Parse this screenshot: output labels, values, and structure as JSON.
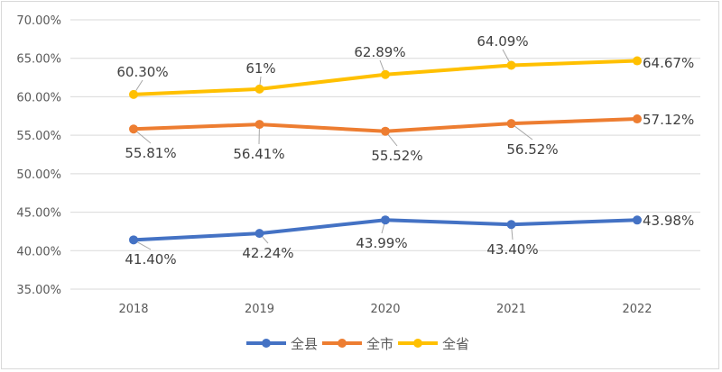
{
  "chart_data": {
    "type": "line",
    "title": "",
    "xlabel": "",
    "ylabel": "",
    "categories": [
      "2018",
      "2019",
      "2020",
      "2021",
      "2022"
    ],
    "ylim": [
      35,
      70
    ],
    "yticks": [
      "35.00%",
      "40.00%",
      "45.00%",
      "50.00%",
      "55.00%",
      "60.00%",
      "65.00%",
      "70.00%"
    ],
    "grid": true,
    "legend_position": "bottom",
    "series": [
      {
        "name": "全县",
        "color": "#4472C4",
        "values": [
          41.4,
          42.24,
          43.99,
          43.4,
          43.98
        ],
        "labels": [
          "41.40%",
          "42.24%",
          "43.99%",
          "43.40%",
          "43.98%"
        ]
      },
      {
        "name": "全市",
        "color": "#ED7D31",
        "values": [
          55.81,
          56.41,
          55.52,
          56.52,
          57.12
        ],
        "labels": [
          "55.81%",
          "56.41%",
          "55.52%",
          "56.52%",
          "57.12%"
        ]
      },
      {
        "name": "全省",
        "color": "#FFC000",
        "values": [
          60.3,
          61.0,
          62.89,
          64.09,
          64.67
        ],
        "labels": [
          "60.30%",
          "61%",
          "62.89%",
          "64.09%",
          "64.67%"
        ]
      }
    ]
  }
}
